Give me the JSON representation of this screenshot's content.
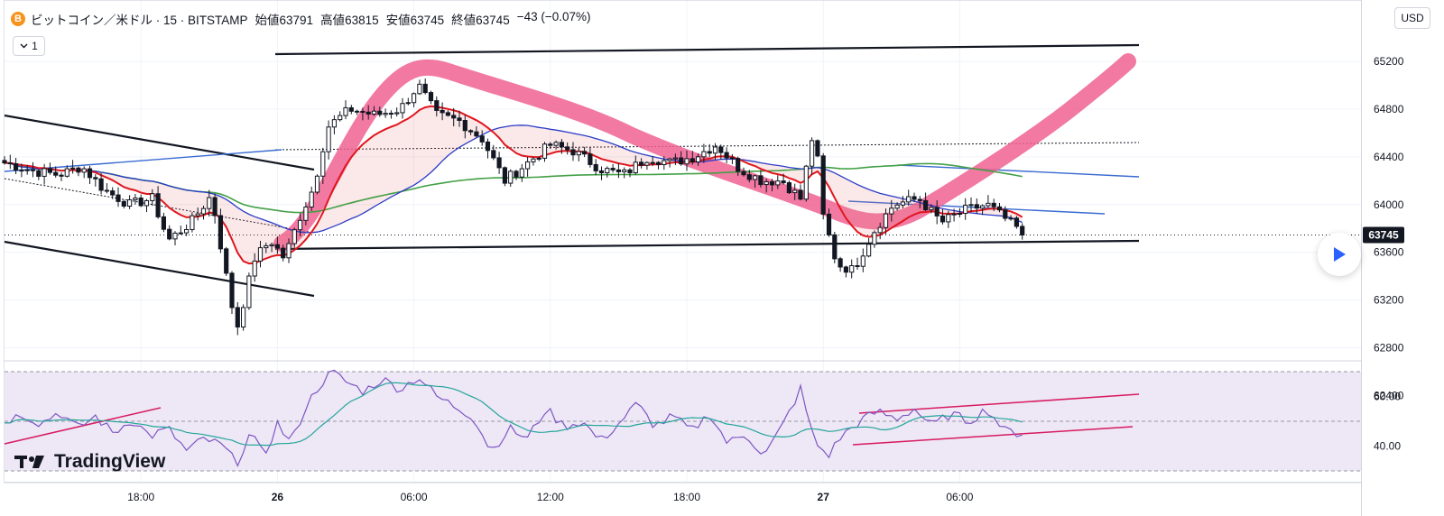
{
  "header": {
    "coin_icon": "bitcoin-icon",
    "coin_symbol": "B",
    "title": "ビットコイン／米ドル · 15 · BITSTAMP",
    "open_label": "始値",
    "open": "63791",
    "high_label": "高値",
    "high": "63815",
    "low_label": "安値",
    "low": "63745",
    "close_label": "終値",
    "close": "63745",
    "change": "−43 (−0.07%)"
  },
  "interval_chip": {
    "icon": "chevron-down-icon",
    "value": "1"
  },
  "currency": "USD",
  "logo_text": "TradingView",
  "colors": {
    "up": "#ffffff",
    "down": "#131722",
    "ema_red": "#e0161e",
    "sma_blue": "#2a3cc8",
    "sma_green": "#43a047",
    "highlight": "#f06292",
    "rsi_line": "#7e57c2",
    "rsi_ma": "#26a69a",
    "rsi_band": "#ede7f6",
    "trend_blue": "#3a6bd1",
    "price_label_bg": "#131722"
  },
  "chart_data": {
    "type": "candlestick",
    "symbol": "BTCUSD",
    "interval": "15",
    "exchange": "BITSTAMP",
    "last_price": 63745,
    "price_axis": {
      "ticks": [
        65200,
        64800,
        64400,
        64000,
        63600,
        63200,
        62800,
        62400
      ],
      "labels": [
        "65200",
        "64800",
        "64400",
        "64000",
        "63600",
        "63200",
        "62800",
        "62400"
      ]
    },
    "time_axis": {
      "labels": [
        {
          "t": 6,
          "text": "18:00"
        },
        {
          "t": 12,
          "text": "26"
        },
        {
          "t": 18,
          "text": "06:00"
        },
        {
          "t": 24,
          "text": "12:00"
        },
        {
          "t": 30,
          "text": "18:00"
        },
        {
          "t": 36,
          "text": "27"
        },
        {
          "t": 42,
          "text": "06:00"
        }
      ]
    },
    "close_path": [
      [
        0,
        64350
      ],
      [
        1.3,
        64280
      ],
      [
        2.4,
        64250
      ],
      [
        3.4,
        64320
      ],
      [
        4.4,
        64120
      ],
      [
        5.5,
        64000
      ],
      [
        6.5,
        64050
      ],
      [
        7.2,
        63700
      ],
      [
        8.2,
        63850
      ],
      [
        9.1,
        64080
      ],
      [
        9.7,
        63450
      ],
      [
        10.2,
        62950
      ],
      [
        11.0,
        63550
      ],
      [
        11.7,
        63700
      ],
      [
        12.3,
        63550
      ],
      [
        13.0,
        63900
      ],
      [
        13.6,
        64150
      ],
      [
        14.2,
        64650
      ],
      [
        15.2,
        64800
      ],
      [
        16.3,
        64750
      ],
      [
        17.4,
        64800
      ],
      [
        18.2,
        65000
      ],
      [
        19.0,
        64750
      ],
      [
        20.0,
        64700
      ],
      [
        21.0,
        64550
      ],
      [
        22.0,
        64200
      ],
      [
        23.0,
        64350
      ],
      [
        24.0,
        64500
      ],
      [
        25.0,
        64450
      ],
      [
        26.2,
        64300
      ],
      [
        27.2,
        64250
      ],
      [
        28.3,
        64400
      ],
      [
        29.3,
        64350
      ],
      [
        30.3,
        64400
      ],
      [
        31.3,
        64500
      ],
      [
        32.3,
        64300
      ],
      [
        33.3,
        64200
      ],
      [
        34.2,
        64200
      ],
      [
        35.0,
        64050
      ],
      [
        35.6,
        64650
      ],
      [
        36.0,
        63900
      ],
      [
        36.6,
        63500
      ],
      [
        37.3,
        63450
      ],
      [
        38.3,
        63800
      ],
      [
        39.1,
        64000
      ],
      [
        40.2,
        64050
      ],
      [
        41.2,
        63850
      ],
      [
        42.2,
        63950
      ],
      [
        43.2,
        64000
      ],
      [
        44.2,
        63850
      ],
      [
        44.9,
        63745
      ]
    ],
    "rsi": {
      "band_upper": 70,
      "band_middle": 50,
      "band_lower": 30,
      "axis_labels": [
        "60.00",
        "40.00"
      ],
      "axis_values": [
        60,
        40
      ],
      "path": [
        [
          0,
          50
        ],
        [
          0.8,
          53
        ],
        [
          1.6,
          49
        ],
        [
          2.4,
          54
        ],
        [
          3.2,
          47
        ],
        [
          4.0,
          52
        ],
        [
          4.8,
          45
        ],
        [
          5.6,
          51
        ],
        [
          6.4,
          44
        ],
        [
          7.2,
          47
        ],
        [
          8.0,
          38
        ],
        [
          8.8,
          43
        ],
        [
          9.6,
          40
        ],
        [
          10.2,
          33
        ],
        [
          10.8,
          45
        ],
        [
          11.4,
          36
        ],
        [
          12.0,
          49
        ],
        [
          12.6,
          41
        ],
        [
          13.2,
          55
        ],
        [
          13.8,
          64
        ],
        [
          14.4,
          70
        ],
        [
          15.0,
          66
        ],
        [
          15.8,
          62
        ],
        [
          16.6,
          67
        ],
        [
          17.4,
          63
        ],
        [
          18.2,
          68
        ],
        [
          19.0,
          60
        ],
        [
          19.8,
          56
        ],
        [
          20.6,
          52
        ],
        [
          21.4,
          38
        ],
        [
          22.2,
          47
        ],
        [
          23.0,
          43
        ],
        [
          23.8,
          55
        ],
        [
          24.6,
          48
        ],
        [
          25.4,
          50
        ],
        [
          26.2,
          42
        ],
        [
          27.0,
          49
        ],
        [
          27.8,
          57
        ],
        [
          28.6,
          48
        ],
        [
          29.4,
          52
        ],
        [
          30.2,
          46
        ],
        [
          31.0,
          53
        ],
        [
          31.8,
          41
        ],
        [
          32.6,
          45
        ],
        [
          33.4,
          36
        ],
        [
          34.2,
          48
        ],
        [
          35.0,
          63
        ],
        [
          35.6,
          42
        ],
        [
          36.2,
          36
        ],
        [
          36.8,
          44
        ],
        [
          37.6,
          50
        ],
        [
          38.4,
          54
        ],
        [
          39.2,
          51
        ],
        [
          40.0,
          55
        ],
        [
          40.8,
          48
        ],
        [
          41.6,
          53
        ],
        [
          42.4,
          50
        ],
        [
          43.2,
          55
        ],
        [
          44.0,
          46
        ],
        [
          44.9,
          45
        ]
      ]
    }
  }
}
